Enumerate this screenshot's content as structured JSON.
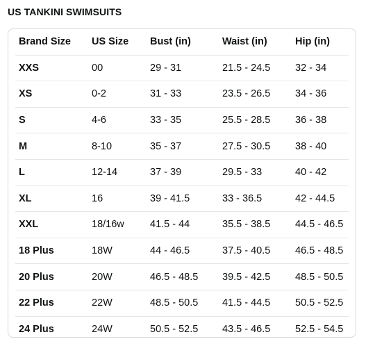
{
  "page": {
    "title": "US TANKINI SWIMSUITS"
  },
  "table": {
    "headers": [
      "Brand Size",
      "US Size",
      "Bust (in)",
      "Waist (in)",
      "Hip (in)"
    ],
    "rows": [
      [
        "XXS",
        "00",
        "29 - 31",
        "21.5 - 24.5",
        "32 - 34"
      ],
      [
        "XS",
        "0-2",
        "31 - 33",
        "23.5 - 26.5",
        "34 - 36"
      ],
      [
        "S",
        "4-6",
        "33 - 35",
        "25.5 - 28.5",
        "36 - 38"
      ],
      [
        "M",
        "8-10",
        "35 - 37",
        "27.5 - 30.5",
        "38 - 40"
      ],
      [
        "L",
        "12-14",
        "37 - 39",
        "29.5 - 33",
        "40 - 42"
      ],
      [
        "XL",
        "16",
        "39 - 41.5",
        "33 - 36.5",
        "42 - 44.5"
      ],
      [
        "XXL",
        "18/16w",
        "41.5 - 44",
        "35.5 - 38.5",
        "44.5 - 46.5"
      ],
      [
        "18 Plus",
        "18W",
        "44 - 46.5",
        "37.5 - 40.5",
        "46.5 - 48.5"
      ],
      [
        "20 Plus",
        "20W",
        "46.5 - 48.5",
        "39.5 - 42.5",
        "48.5 - 50.5"
      ],
      [
        "22 Plus",
        "22W",
        "48.5 - 50.5",
        "41.5 - 44.5",
        "50.5 - 52.5"
      ],
      [
        "24 Plus",
        "24W",
        "50.5 - 52.5",
        "43.5 - 46.5",
        "52.5 - 54.5"
      ]
    ]
  },
  "colors": {
    "text": "#0f1111",
    "border": "#d5d9d9",
    "row_divider": "#e3e6e6"
  }
}
